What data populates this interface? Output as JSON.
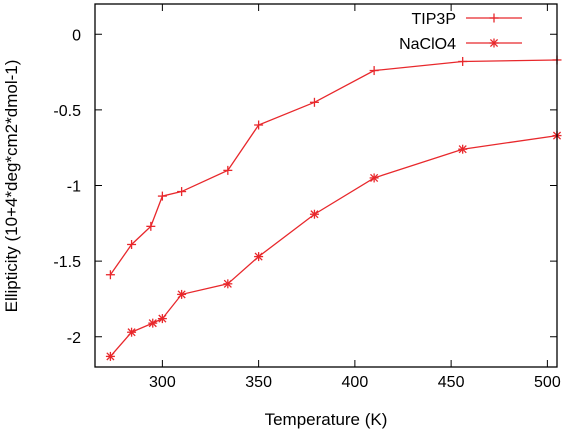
{
  "chart_data": {
    "type": "line",
    "title": "",
    "xlabel": "Temperature (K)",
    "ylabel": "Ellipticity (10+4*deg*cm2*dmol-1)",
    "xlim": [
      265,
      505
    ],
    "ylim": [
      -2.2,
      0.2
    ],
    "xticks": [
      {
        "value": 300,
        "label": "300"
      },
      {
        "value": 350,
        "label": "350"
      },
      {
        "value": 400,
        "label": "400"
      },
      {
        "value": 450,
        "label": "450"
      },
      {
        "value": 500,
        "label": "500"
      }
    ],
    "yticks": [
      {
        "value": 0,
        "label": "0"
      },
      {
        "value": -0.5,
        "label": "-0.5"
      },
      {
        "value": -1,
        "label": "-1"
      },
      {
        "value": -1.5,
        "label": "-1.5"
      },
      {
        "value": -2,
        "label": "-2"
      }
    ],
    "grid": false,
    "legend_position": "top-right",
    "series": [
      {
        "name": "TIP3P",
        "color": "#e8282c",
        "marker": "plus",
        "x": [
          273,
          284,
          294,
          300,
          310,
          334,
          350,
          379,
          410,
          456,
          505
        ],
        "y": [
          -1.59,
          -1.39,
          -1.27,
          -1.07,
          -1.04,
          -0.9,
          -0.6,
          -0.45,
          -0.24,
          -0.18,
          -0.17
        ]
      },
      {
        "name": "NaClO4",
        "color": "#e8282c",
        "marker": "star",
        "x": [
          273,
          284,
          295,
          300,
          310,
          334,
          350,
          379,
          410,
          456,
          505
        ],
        "y": [
          -2.13,
          -1.97,
          -1.91,
          -1.88,
          -1.72,
          -1.65,
          -1.47,
          -1.19,
          -0.95,
          -0.76,
          -0.67
        ]
      }
    ]
  }
}
